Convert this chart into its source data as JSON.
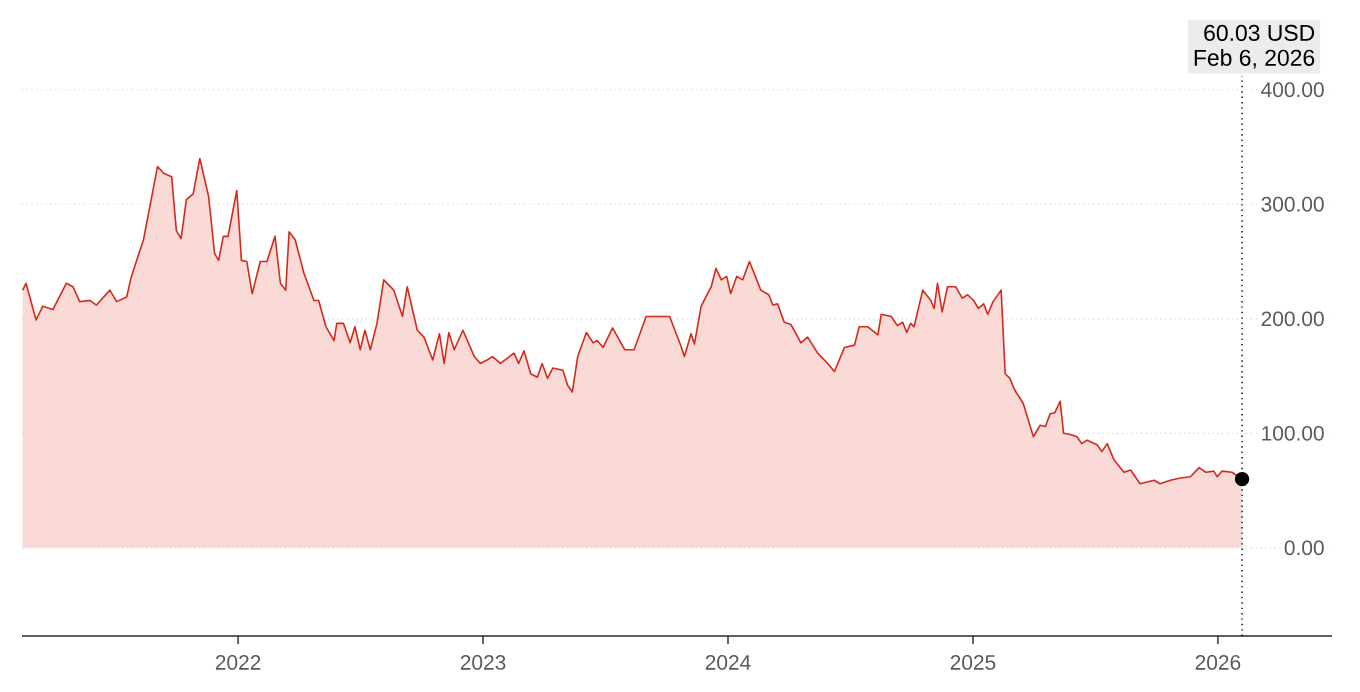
{
  "chart_data": {
    "type": "area",
    "color": "#d42a1c",
    "grid": "y",
    "x": [
      "2021-02-14",
      "2021-02-19",
      "2021-03-06",
      "2021-03-16",
      "2021-03-31",
      "2021-04-20",
      "2021-04-30",
      "2021-05-10",
      "2021-05-25",
      "2021-06-04",
      "2021-06-24",
      "2021-07-04",
      "2021-07-19",
      "2021-07-26",
      "2021-08-13",
      "2021-09-03",
      "2021-09-12",
      "2021-09-24",
      "2021-10-01",
      "2021-10-08",
      "2021-10-16",
      "2021-10-26",
      "2021-11-05",
      "2021-11-18",
      "2021-11-27",
      "2021-12-03",
      "2021-12-10",
      "2021-12-17",
      "2021-12-30",
      "2022-01-06",
      "2022-01-14",
      "2022-01-22",
      "2022-02-03",
      "2022-02-13",
      "2022-02-25",
      "2022-03-05",
      "2022-03-13",
      "2022-03-18",
      "2022-03-27",
      "2022-04-09",
      "2022-04-24",
      "2022-05-01",
      "2022-05-12",
      "2022-05-24",
      "2022-05-28",
      "2022-06-07",
      "2022-06-17",
      "2022-06-24",
      "2022-07-02",
      "2022-07-09",
      "2022-07-17",
      "2022-07-27",
      "2022-08-06",
      "2022-08-21",
      "2022-09-03",
      "2022-09-10",
      "2022-09-25",
      "2022-10-05",
      "2022-10-18",
      "2022-10-28",
      "2022-11-04",
      "2022-11-11",
      "2022-11-19",
      "2022-12-02",
      "2022-12-19",
      "2022-12-28",
      "2023-01-07",
      "2023-01-15",
      "2023-01-27",
      "2023-02-16",
      "2023-02-23",
      "2023-03-03",
      "2023-03-13",
      "2023-03-23",
      "2023-03-30",
      "2023-04-07",
      "2023-04-15",
      "2023-04-30",
      "2023-05-07",
      "2023-05-14",
      "2023-05-22",
      "2023-06-04",
      "2023-06-14",
      "2023-06-20",
      "2023-06-29",
      "2023-07-13",
      "2023-07-31",
      "2023-08-14",
      "2023-09-01",
      "2023-10-06",
      "2023-10-23",
      "2023-10-28",
      "2023-11-07",
      "2023-11-12",
      "2023-11-22",
      "2023-12-07",
      "2023-12-14",
      "2023-12-22",
      "2023-12-30",
      "2024-01-05",
      "2024-01-14",
      "2024-01-23",
      "2024-02-02",
      "2024-02-19",
      "2024-03-02",
      "2024-03-08",
      "2024-03-15",
      "2024-03-25",
      "2024-04-04",
      "2024-04-19",
      "2024-04-29",
      "2024-05-14",
      "2024-05-29",
      "2024-06-08",
      "2024-06-23",
      "2024-07-08",
      "2024-07-15",
      "2024-07-28",
      "2024-08-12",
      "2024-08-17",
      "2024-09-01",
      "2024-09-10",
      "2024-09-18",
      "2024-09-24",
      "2024-09-30",
      "2024-10-05",
      "2024-10-18",
      "2024-10-30",
      "2024-11-04",
      "2024-11-09",
      "2024-11-16",
      "2024-11-24",
      "2024-12-06",
      "2024-12-16",
      "2024-12-24",
      "2025-01-02",
      "2025-01-09",
      "2025-01-17",
      "2025-01-23",
      "2025-01-31",
      "2025-02-12",
      "2025-02-18",
      "2025-02-25",
      "2025-03-04",
      "2025-03-17",
      "2025-04-01",
      "2025-04-11",
      "2025-04-19",
      "2025-04-26",
      "2025-05-03",
      "2025-05-11",
      "2025-05-16",
      "2025-05-26",
      "2025-06-05",
      "2025-06-12",
      "2025-06-20",
      "2025-07-05",
      "2025-07-12",
      "2025-07-20",
      "2025-07-30",
      "2025-08-14",
      "2025-08-24",
      "2025-09-07",
      "2025-09-28",
      "2025-10-07",
      "2025-10-22",
      "2025-11-06",
      "2025-11-21",
      "2025-12-04",
      "2025-12-14",
      "2025-12-26",
      "2025-12-31",
      "2026-01-07",
      "2026-01-22",
      "2026-02-06"
    ],
    "values": [
      225,
      231,
      199,
      211,
      208,
      231,
      228,
      215,
      216,
      212,
      225,
      215,
      219,
      237,
      269,
      333,
      327,
      324,
      277,
      270,
      304,
      309,
      340,
      307,
      257,
      251,
      272,
      272,
      312,
      251,
      250,
      222,
      250,
      250,
      272,
      231,
      225,
      276,
      269,
      240,
      216,
      216,
      193,
      181,
      196,
      196,
      179,
      193,
      173,
      190,
      173,
      196,
      234,
      225,
      202,
      228,
      190,
      184,
      164,
      187,
      161,
      188,
      173,
      190,
      167,
      161,
      164,
      167,
      161,
      170,
      161,
      172,
      152,
      149,
      161,
      148,
      157,
      155,
      142,
      136,
      167,
      188,
      179,
      181,
      175,
      192,
      173,
      173,
      202,
      202,
      176,
      167,
      187,
      178,
      211,
      228,
      244,
      234,
      237,
      222,
      237,
      234,
      250,
      225,
      221,
      212,
      213,
      197,
      195,
      179,
      184,
      170,
      161,
      154,
      175,
      177,
      193,
      193,
      186,
      204,
      202,
      194,
      197,
      188,
      196,
      193,
      225,
      216,
      209,
      231,
      206,
      228,
      228,
      218,
      221,
      216,
      209,
      213,
      204,
      215,
      225,
      152,
      148,
      138,
      126,
      97,
      107,
      106,
      117,
      118,
      128,
      100,
      99,
      97,
      91,
      94,
      90,
      84,
      91,
      77,
      66,
      68,
      56,
      59,
      56,
      59,
      61,
      62,
      70,
      66,
      67,
      62,
      67,
      66,
      60.03
    ],
    "xlim": [
      "2021-02-13",
      "2026-06-20"
    ],
    "ylim": [
      -77,
      412
    ],
    "xticks": [
      "2022",
      "2023",
      "2024",
      "2025",
      "2026"
    ],
    "yticks": [
      {
        "value": 0,
        "label": "0.00"
      },
      {
        "value": 100,
        "label": "100.00"
      },
      {
        "value": 200,
        "label": "200.00"
      },
      {
        "value": 300,
        "label": "300.00"
      },
      {
        "value": 400,
        "label": "400.00"
      }
    ],
    "ref_lines": [
      {
        "axis": "x",
        "value": "2026-02-06",
        "color": "#000000",
        "line_style": "dotted"
      }
    ],
    "annotations": [
      "60.03 USD",
      "Feb 6, 2026"
    ]
  }
}
